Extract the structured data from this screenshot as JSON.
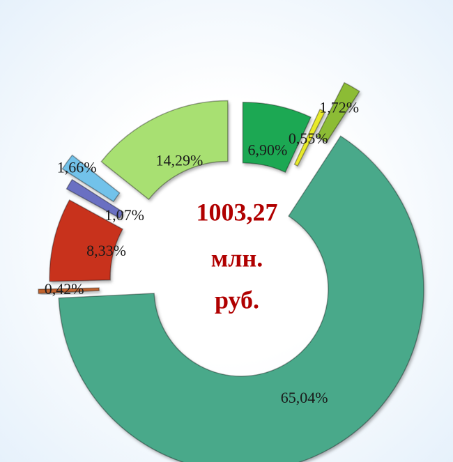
{
  "chart_data": {
    "type": "donut",
    "center_label": [
      "1003,27",
      "млн.",
      "руб."
    ],
    "values": [
      6.9,
      0.55,
      1.72,
      65.04,
      0.42,
      8.33,
      1.07,
      1.66,
      14.29
    ],
    "value_labels": [
      "6,90%",
      "0,55%",
      "1,72%",
      "65,04%",
      "0,42%",
      "8,33%",
      "1,07%",
      "1,66%",
      "14,29%"
    ],
    "colors": [
      "#1ea852",
      "#e8ea2c",
      "#8cbc34",
      "#4aa98a",
      "#c0622e",
      "#c8321e",
      "#6a70c2",
      "#72c2ea",
      "#a8e072"
    ]
  }
}
